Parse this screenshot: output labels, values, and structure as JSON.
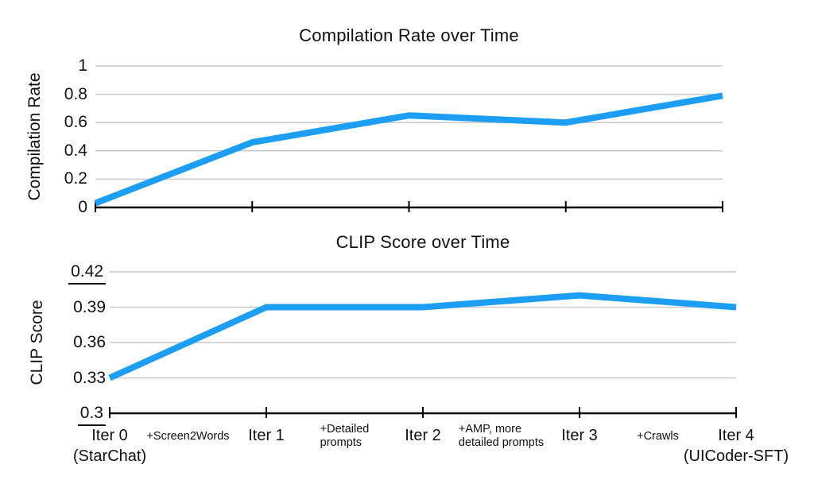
{
  "colors": {
    "line": "#1c9ef4",
    "grid": "#c9c9c9",
    "axis": "#000000",
    "text": "#111111",
    "background": "#ffffff"
  },
  "chart_data": [
    {
      "type": "line",
      "title": "Compilation Rate over Time",
      "xlabel": "",
      "ylabel": "Compilation Rate",
      "categories": [
        "Iter 0 (StarChat)",
        "Iter 1",
        "Iter 2",
        "Iter 3",
        "Iter 4 (UICoder-SFT)"
      ],
      "values": [
        0.03,
        0.46,
        0.65,
        0.6,
        0.79
      ],
      "ylim": [
        0,
        1
      ],
      "yticks": [
        "0",
        "0.2",
        "0.4",
        "0.6",
        "0.8",
        "1"
      ],
      "underlined_yticks": [],
      "grid": true,
      "legend": "none",
      "line_color": "#1c9ef4"
    },
    {
      "type": "line",
      "title": "CLIP Score over Time",
      "xlabel": "",
      "ylabel": "CLIP Score",
      "categories": [
        "Iter 0 (StarChat)",
        "Iter 1",
        "Iter 2",
        "Iter 3",
        "Iter 4 (UICoder-SFT)"
      ],
      "values": [
        0.33,
        0.39,
        0.39,
        0.4,
        0.39
      ],
      "ylim": [
        0.3,
        0.42
      ],
      "yticks": [
        "0.3",
        "0.33",
        "0.36",
        "0.39",
        "0.42"
      ],
      "underlined_yticks": [
        "0.3",
        "0.42"
      ],
      "grid": true,
      "legend": "none",
      "line_color": "#1c9ef4"
    }
  ],
  "xaxis": {
    "labels": [
      {
        "kind": "major",
        "lines": [
          "Iter 0",
          "(StarChat)"
        ]
      },
      {
        "kind": "minor",
        "lines": [
          "+Screen2Words"
        ]
      },
      {
        "kind": "major",
        "lines": [
          "Iter 1"
        ]
      },
      {
        "kind": "minor",
        "lines": [
          "+Detailed",
          "prompts"
        ]
      },
      {
        "kind": "major",
        "lines": [
          "Iter 2"
        ]
      },
      {
        "kind": "minor",
        "lines": [
          "+AMP, more",
          "detailed prompts"
        ]
      },
      {
        "kind": "major",
        "lines": [
          "Iter 3"
        ]
      },
      {
        "kind": "minor",
        "lines": [
          "+Crawls"
        ]
      },
      {
        "kind": "major",
        "lines": [
          "Iter 4",
          "(UICoder-SFT)"
        ]
      }
    ]
  }
}
